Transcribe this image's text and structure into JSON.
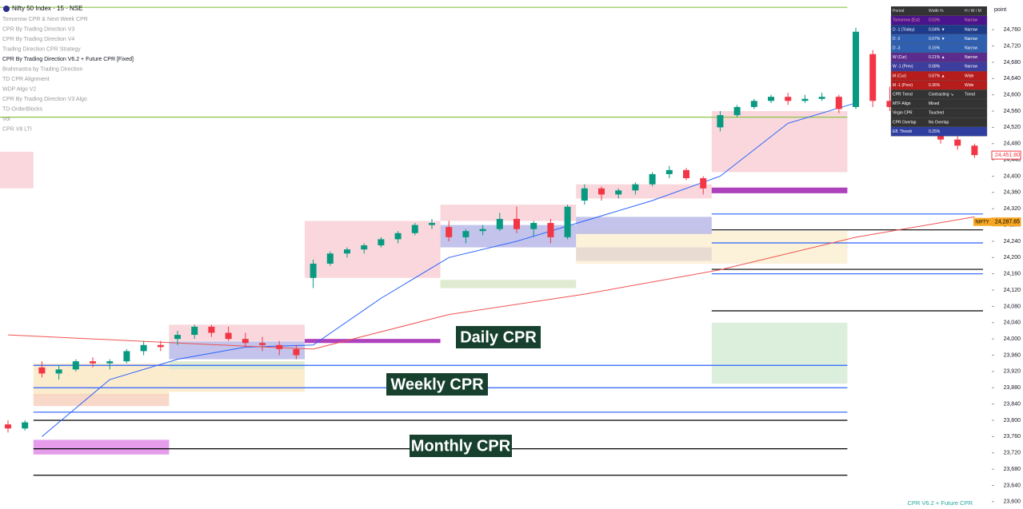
{
  "chart_data": {
    "type": "candlestick",
    "title": "Nifty 50 Index · 15 · NSE",
    "ylim": [
      23582,
      24833
    ],
    "yticks": [
      {
        "value": 24760,
        "label": "24,760"
      },
      {
        "value": 24720,
        "label": "24,720"
      },
      {
        "value": 24680,
        "label": "24,680"
      },
      {
        "value": 24640,
        "label": "24,640"
      },
      {
        "value": 24600,
        "label": "24,600"
      },
      {
        "value": 24560,
        "label": "24,560"
      },
      {
        "value": 24520,
        "label": "24,520"
      },
      {
        "value": 24480,
        "label": "24,480"
      },
      {
        "value": 24440,
        "label": "24,440"
      },
      {
        "value": 24400,
        "label": "24,400"
      },
      {
        "value": 24360,
        "label": "24,360"
      },
      {
        "value": 24320,
        "label": "24,320"
      },
      {
        "value": 24280,
        "label": "24,280"
      },
      {
        "value": 24240,
        "label": "24,240"
      },
      {
        "value": 24200,
        "label": "24,200"
      },
      {
        "value": 24160,
        "label": "24,160"
      },
      {
        "value": 24120,
        "label": "24,120"
      },
      {
        "value": 24080,
        "label": "24,080"
      },
      {
        "value": 24040,
        "label": "24,040"
      },
      {
        "value": 24000,
        "label": "24,000"
      },
      {
        "value": 23960,
        "label": "23,960"
      },
      {
        "value": 23920,
        "label": "23,920"
      },
      {
        "value": 23880,
        "label": "23,880"
      },
      {
        "value": 23840,
        "label": "23,840"
      },
      {
        "value": 23800,
        "label": "23,800"
      },
      {
        "value": 23760,
        "label": "23,760"
      },
      {
        "value": 23720,
        "label": "23,720"
      },
      {
        "value": 23680,
        "label": "23,680"
      },
      {
        "value": 23640,
        "label": "23,640"
      },
      {
        "value": 23600,
        "label": "23,600"
      }
    ],
    "up_color": "#089981",
    "down_color": "#f23645",
    "open": [
      23790,
      23780,
      23930,
      23915,
      23925,
      23945,
      23940,
      23945,
      23970,
      23985,
      24000,
      24010,
      24030,
      24015,
      24000,
      23990,
      23985,
      23975,
      24150,
      24185,
      24210,
      24220,
      24230,
      24245,
      24260,
      24280,
      24275,
      24250,
      24265,
      24270,
      24295,
      24270,
      24285,
      24250,
      24340,
      24370,
      24355,
      24365,
      24380,
      24405,
      24415,
      24395,
      24520,
      24550,
      24570,
      24585,
      24595,
      24585,
      24590,
      24595,
      24570,
      24700,
      24585,
      24570,
      24555,
      24510,
      24490,
      24475
    ],
    "high": [
      23800,
      23800,
      23945,
      23935,
      23950,
      23955,
      23950,
      23975,
      23995,
      23995,
      24020,
      24035,
      24035,
      24030,
      24015,
      24005,
      23995,
      23985,
      24195,
      24215,
      24225,
      24235,
      24250,
      24265,
      24285,
      24295,
      24290,
      24270,
      24280,
      24310,
      24325,
      24290,
      24295,
      24330,
      24380,
      24375,
      24370,
      24385,
      24410,
      24425,
      24420,
      24400,
      24560,
      24575,
      24590,
      24600,
      24605,
      24600,
      24605,
      24600,
      24765,
      24710,
      24620,
      24580,
      24565,
      24525,
      24500,
      24480
    ],
    "low": [
      23770,
      23775,
      23905,
      23900,
      23920,
      23930,
      23925,
      23940,
      23960,
      23970,
      23985,
      24000,
      24005,
      23995,
      23980,
      23970,
      23960,
      23950,
      24125,
      24180,
      24200,
      24210,
      24225,
      24235,
      24255,
      24270,
      24240,
      24235,
      24255,
      24265,
      24260,
      24250,
      24235,
      24245,
      24330,
      24340,
      24345,
      24355,
      24375,
      24395,
      24390,
      24355,
      24510,
      24545,
      24565,
      24580,
      24575,
      24580,
      24585,
      24555,
      24565,
      24570,
      24560,
      24540,
      24500,
      24480,
      24465,
      24445
    ],
    "close": [
      23780,
      23795,
      23915,
      23925,
      23945,
      23940,
      23945,
      23970,
      23985,
      23980,
      24010,
      24030,
      24015,
      24000,
      23990,
      23985,
      23975,
      23960,
      24185,
      24210,
      24220,
      24230,
      24245,
      24260,
      24280,
      24285,
      24250,
      24265,
      24270,
      24295,
      24270,
      24285,
      24250,
      24325,
      24370,
      24355,
      24365,
      24380,
      24405,
      24415,
      24395,
      24370,
      24550,
      24570,
      24585,
      24595,
      24585,
      24590,
      24595,
      24565,
      24755,
      24585,
      24570,
      24555,
      24510,
      24490,
      24475,
      24451.8
    ],
    "series": [
      {
        "color": "#2962ff",
        "x": [
          2,
          6,
          10,
          14,
          18,
          22,
          26,
          30,
          34,
          38,
          42,
          46,
          50
        ],
        "values": [
          23760,
          23900,
          23950,
          23980,
          23985,
          24100,
          24200,
          24240,
          24290,
          24340,
          24400,
          24530,
          24580
        ]
      },
      {
        "color": "#ef5350",
        "x": [
          0,
          10,
          18,
          26,
          34,
          42,
          50,
          57
        ],
        "values": [
          24010,
          23990,
          23975,
          24060,
          24110,
          24170,
          24250,
          24300
        ]
      }
    ],
    "zones": [
      {
        "from": 0,
        "to": 1,
        "top": 24460,
        "bottom": 24370,
        "color": "#f8d0d6"
      },
      {
        "from": 34,
        "to": 49,
        "top": 24265,
        "bottom": 24185,
        "color": "#fbf0d2"
      },
      {
        "from": 2,
        "to": 9,
        "top": 23940,
        "bottom": 23860,
        "color": "#fbe9c6"
      },
      {
        "from": 2,
        "to": 9,
        "top": 23865,
        "bottom": 23835,
        "color": "#f7d1c0"
      },
      {
        "from": 2,
        "to": 9,
        "top": 23752,
        "bottom": 23716,
        "color": "#e08be8"
      },
      {
        "from": 10,
        "to": 17,
        "top": 24035,
        "bottom": 23995,
        "color": "#f8d0d6"
      },
      {
        "from": 10,
        "to": 17,
        "top": 23994,
        "bottom": 23950,
        "color": "#b9b8e8"
      },
      {
        "from": 10,
        "to": 17,
        "top": 23945,
        "bottom": 23925,
        "color": "#d8e8c8"
      },
      {
        "from": 10,
        "to": 17,
        "top": 23925,
        "bottom": 23870,
        "color": "#fbe9c6"
      },
      {
        "from": 18,
        "to": 25,
        "top": 24290,
        "bottom": 24150,
        "color": "#f8d0d6"
      },
      {
        "from": 18,
        "to": 25,
        "top": 24000,
        "bottom": 23990,
        "color": "#a020b0"
      },
      {
        "from": 26,
        "to": 33,
        "top": 24330,
        "bottom": 24290,
        "color": "#f8d0d6"
      },
      {
        "from": 26,
        "to": 33,
        "top": 24280,
        "bottom": 24225,
        "color": "#b9b8e8"
      },
      {
        "from": 26,
        "to": 33,
        "top": 24145,
        "bottom": 24125,
        "color": "#d8e8c8"
      },
      {
        "from": 34,
        "to": 41,
        "top": 24380,
        "bottom": 24345,
        "color": "#f8d0d6"
      },
      {
        "from": 34,
        "to": 41,
        "top": 24300,
        "bottom": 24258,
        "color": "#b9b8e8"
      },
      {
        "from": 34,
        "to": 41,
        "top": 24225,
        "bottom": 24192,
        "color": "#e4d8d0"
      },
      {
        "from": 42,
        "to": 49,
        "top": 24560,
        "bottom": 24410,
        "color": "#f8d0d6"
      },
      {
        "from": 42,
        "to": 49,
        "top": 24372,
        "bottom": 24358,
        "color": "#a020b0"
      },
      {
        "from": 42,
        "to": 49,
        "top": 24040,
        "bottom": 23890,
        "color": "#d6ecd6"
      }
    ],
    "levels": [
      {
        "value": 23800,
        "from": 2,
        "to": 49,
        "color": "#000000"
      },
      {
        "value": 23730,
        "from": 2,
        "to": 49,
        "color": "#000000"
      },
      {
        "value": 23665,
        "from": 2,
        "to": 49,
        "color": "#000000"
      },
      {
        "value": 23935,
        "from": 2,
        "to": 49,
        "color": "#2962ff"
      },
      {
        "value": 23880,
        "from": 2,
        "to": 49,
        "color": "#2962ff"
      },
      {
        "value": 23820,
        "from": 2,
        "to": 49,
        "color": "#2962ff"
      },
      {
        "value": 24268,
        "from": 42,
        "to": 57,
        "color": "#000000"
      },
      {
        "value": 24307,
        "from": 42,
        "to": 57,
        "color": "#2962ff"
      },
      {
        "value": 24236,
        "from": 42,
        "to": 57,
        "color": "#2962ff"
      },
      {
        "value": 24160,
        "from": 42,
        "to": 57,
        "color": "#2962ff"
      },
      {
        "value": 24171,
        "from": 42,
        "to": 57,
        "color": "#000000"
      },
      {
        "value": 24069,
        "from": 42,
        "to": 57,
        "color": "#000000"
      },
      {
        "value": 24815,
        "from": 0,
        "to": 49,
        "color": "#8bc34a"
      },
      {
        "value": 24545,
        "from": 0,
        "to": 49,
        "color": "#8bc34a"
      }
    ],
    "price_labels": [
      {
        "value": 24451.8,
        "label": "24,451.80",
        "color": "#f23645"
      },
      {
        "value": 24287.65,
        "label": "24,287.65",
        "name": "NIFTY",
        "color": "#f5a623"
      }
    ],
    "annotations": [
      "Daily CPR",
      "Weekly CPR",
      "Monthly CPR"
    ]
  },
  "indicators": [
    "Tomorrow CPR & Next Week CPR",
    "CPR By Trading Direction V3",
    "CPR By Trading Direction V4",
    "Trading Direction CPR Strategy",
    "CPR By Trading Direction V6.2 + Future CPR [Fixed]",
    "Brahmastra by Trading Direction",
    "TD CPR Alignment",
    "WDP Algo V2",
    "CPR By Trading Direction V3 Algo",
    "TD-OrderBlocks",
    "Vol",
    "CPR V8 LTI"
  ],
  "table": {
    "header": [
      "Period",
      "Width %",
      "H / W / M"
    ],
    "rows": [
      [
        "Tomorrow (Est)",
        "0.03%",
        "Narrow"
      ],
      [
        "D -1 (Today)",
        "0.04% ▼",
        "Narrow"
      ],
      [
        "D -2",
        "0.07% ▼",
        "Narrow"
      ],
      [
        "D -3",
        "0.16%",
        "Narrow"
      ],
      [
        "W (Cur)",
        "0.21% ▲",
        "Narrow"
      ],
      [
        "W -1 (Prev)",
        "0.08%",
        "Narrow"
      ],
      [
        "M (Cur)",
        "0.87% ▲",
        "Wide"
      ],
      [
        "M -1 (Prev)",
        "0.36%",
        "Wide"
      ],
      [
        "CPR Trend",
        "Contracting ↘",
        "Trend"
      ],
      [
        "MTF Align",
        "Mixed"
      ],
      [
        "Virgin CPR",
        "Touched"
      ],
      [
        "CPR Overlap",
        "No Overlap"
      ],
      [
        "Eff. Thresh",
        "0.25%"
      ]
    ]
  },
  "axis_unit": "point",
  "footer": "CPR V6.2 + Future CPR"
}
